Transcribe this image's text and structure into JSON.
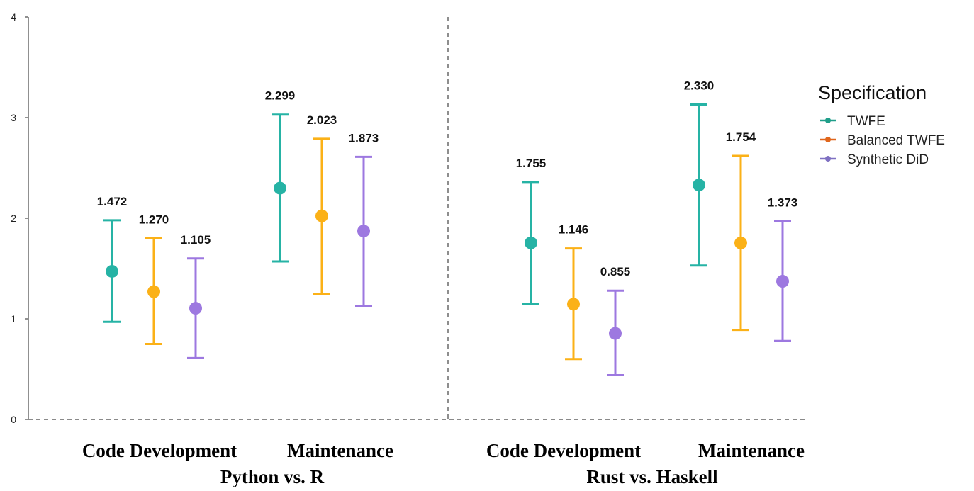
{
  "chart_data": {
    "type": "scatter",
    "ylim": [
      0,
      4
    ],
    "yticks": [
      "0",
      "1",
      "2",
      "3",
      "4"
    ],
    "groups": [
      {
        "label": "Python vs. R",
        "categories": [
          "Code Development",
          "Maintenance"
        ]
      },
      {
        "label": "Rust vs. Haskell",
        "categories": [
          "Code Development",
          "Maintenance"
        ]
      }
    ],
    "legend": {
      "title": "Specification",
      "placement": "right",
      "entries": [
        "TWFE",
        "Balanced TWFE",
        "Synthetic DiD"
      ]
    },
    "series": [
      {
        "name": "TWFE",
        "color": "#26b3a5",
        "legend_color": "#1f9e89",
        "points": [
          {
            "group": "Python vs. R",
            "category": "Code Development",
            "estimate": 1.472,
            "label": "1.472",
            "lower": 0.97,
            "upper": 1.98
          },
          {
            "group": "Python vs. R",
            "category": "Maintenance",
            "estimate": 2.299,
            "label": "2.299",
            "lower": 1.57,
            "upper": 3.03
          },
          {
            "group": "Rust vs. Haskell",
            "category": "Code Development",
            "estimate": 1.755,
            "label": "1.755",
            "lower": 1.15,
            "upper": 2.36
          },
          {
            "group": "Rust vs. Haskell",
            "category": "Maintenance",
            "estimate": 2.33,
            "label": "2.330",
            "lower": 1.53,
            "upper": 3.13
          }
        ]
      },
      {
        "name": "Balanced TWFE",
        "color": "#fbb117",
        "legend_color": "#e0661c",
        "points": [
          {
            "group": "Python vs. R",
            "category": "Code Development",
            "estimate": 1.27,
            "label": "1.270",
            "lower": 0.75,
            "upper": 1.8
          },
          {
            "group": "Python vs. R",
            "category": "Maintenance",
            "estimate": 2.023,
            "label": "2.023",
            "lower": 1.25,
            "upper": 2.79
          },
          {
            "group": "Rust vs. Haskell",
            "category": "Code Development",
            "estimate": 1.146,
            "label": "1.146",
            "lower": 0.6,
            "upper": 1.7
          },
          {
            "group": "Rust vs. Haskell",
            "category": "Maintenance",
            "estimate": 1.754,
            "label": "1.754",
            "lower": 0.89,
            "upper": 2.62
          }
        ]
      },
      {
        "name": "Synthetic DiD",
        "color": "#9d78e0",
        "legend_color": "#7f70c2",
        "points": [
          {
            "group": "Python vs. R",
            "category": "Code Development",
            "estimate": 1.105,
            "label": "1.105",
            "lower": 0.61,
            "upper": 1.6
          },
          {
            "group": "Python vs. R",
            "category": "Maintenance",
            "estimate": 1.873,
            "label": "1.873",
            "lower": 1.13,
            "upper": 2.61
          },
          {
            "group": "Rust vs. Haskell",
            "category": "Code Development",
            "estimate": 0.855,
            "label": "0.855",
            "lower": 0.44,
            "upper": 1.28
          },
          {
            "group": "Rust vs. Haskell",
            "category": "Maintenance",
            "estimate": 1.373,
            "label": "1.373",
            "lower": 0.78,
            "upper": 1.97
          }
        ]
      }
    ]
  }
}
